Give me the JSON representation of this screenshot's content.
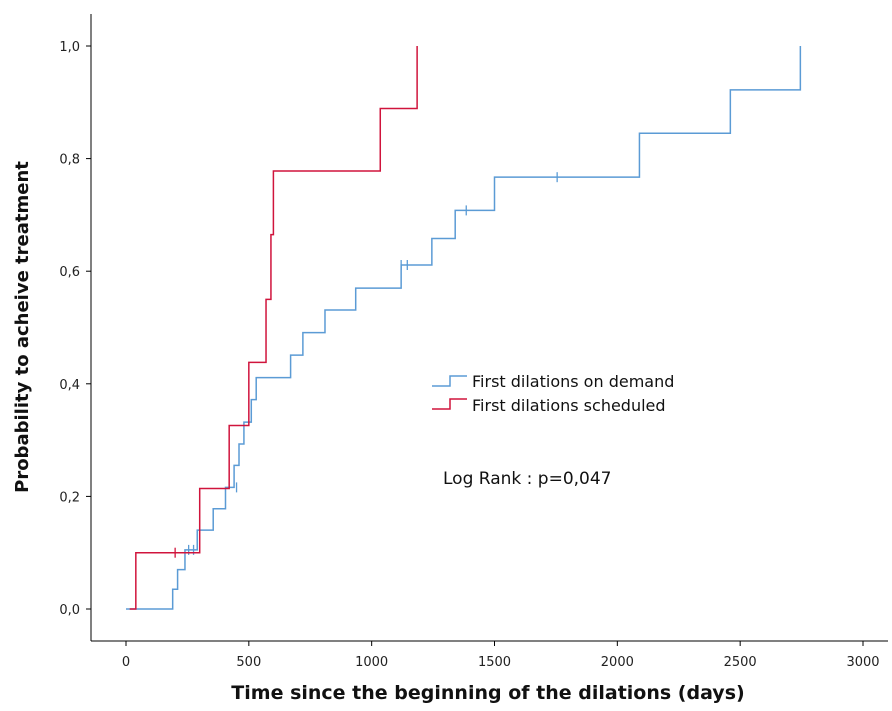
{
  "chart_data": {
    "type": "line",
    "step": true,
    "xlabel": "Time since the beginning of the dilations (days)",
    "ylabel": "Probability to acheive treatment",
    "xlim": [
      0,
      3000
    ],
    "ylim": [
      0,
      1
    ],
    "xticks": [
      0,
      500,
      1000,
      1500,
      2000,
      2500,
      3000
    ],
    "xtick_labels": [
      "0",
      "500",
      "1000",
      "1500",
      "2000",
      "2500",
      "3000"
    ],
    "yticks": [
      0,
      0.2,
      0.4,
      0.6,
      0.8,
      1.0
    ],
    "ytick_labels": [
      "0,0",
      "0,2",
      "0,4",
      "0,6",
      "0,8",
      "1,0"
    ],
    "grid": false,
    "legend_position": "center-right",
    "annotation": "Log Rank : p=0,047",
    "series": [
      {
        "name": "First dilations on demand",
        "color": "#5b9bd5",
        "x": [
          0,
          165,
          190,
          210,
          240,
          290,
          355,
          405,
          440,
          460,
          480,
          510,
          530,
          560,
          580,
          670,
          720,
          810,
          935,
          1120,
          1245,
          1340,
          1500,
          2090,
          2460,
          2745
        ],
        "y": [
          0.0,
          0.0,
          0.035,
          0.07,
          0.105,
          0.14,
          0.178,
          0.216,
          0.255,
          0.293,
          0.332,
          0.372,
          0.411,
          0.411,
          0.411,
          0.451,
          0.491,
          0.531,
          0.57,
          0.611,
          0.658,
          0.708,
          0.767,
          0.845,
          0.922,
          1.0
        ],
        "censored": [
          [
            255,
            0.105
          ],
          [
            275,
            0.105
          ],
          [
            450,
            0.216
          ],
          [
            1120,
            0.611
          ],
          [
            1145,
            0.611
          ],
          [
            1385,
            0.708
          ],
          [
            1755,
            0.767
          ]
        ]
      },
      {
        "name": "First dilations scheduled",
        "color": "#d0143c",
        "x": [
          15,
          40,
          300,
          420,
          500,
          570,
          590,
          600,
          1035,
          1185
        ],
        "y": [
          0.0,
          0.1,
          0.214,
          0.326,
          0.438,
          0.55,
          0.665,
          0.778,
          0.889,
          1.0
        ],
        "censored": [
          [
            200,
            0.1
          ]
        ]
      }
    ]
  }
}
